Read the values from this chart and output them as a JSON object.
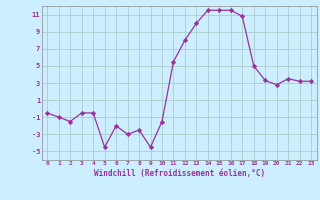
{
  "x": [
    0,
    1,
    2,
    3,
    4,
    5,
    6,
    7,
    8,
    9,
    10,
    11,
    12,
    13,
    14,
    15,
    16,
    17,
    18,
    19,
    20,
    21,
    22,
    23
  ],
  "y": [
    -0.5,
    -1.0,
    -1.5,
    -0.5,
    -0.5,
    -4.5,
    -2.0,
    -3.0,
    -2.5,
    -4.5,
    -1.5,
    5.5,
    8.0,
    10.0,
    11.5,
    11.5,
    11.5,
    10.8,
    5.0,
    3.3,
    2.8,
    3.5,
    3.2,
    3.2
  ],
  "line_color": "#993399",
  "marker": "D",
  "markersize": 2.2,
  "linewidth": 0.9,
  "bg_color": "#cceeff",
  "grid_color": "#aacccc",
  "tick_color": "#993399",
  "label_color": "#993399",
  "xlabel": "Windchill (Refroidissement éolien,°C)",
  "ylim": [
    -6,
    12
  ],
  "yticks": [
    -5,
    -3,
    -1,
    1,
    3,
    5,
    7,
    9,
    11
  ],
  "xticks": [
    0,
    1,
    2,
    3,
    4,
    5,
    6,
    7,
    8,
    9,
    10,
    11,
    12,
    13,
    14,
    15,
    16,
    17,
    18,
    19,
    20,
    21,
    22,
    23
  ]
}
